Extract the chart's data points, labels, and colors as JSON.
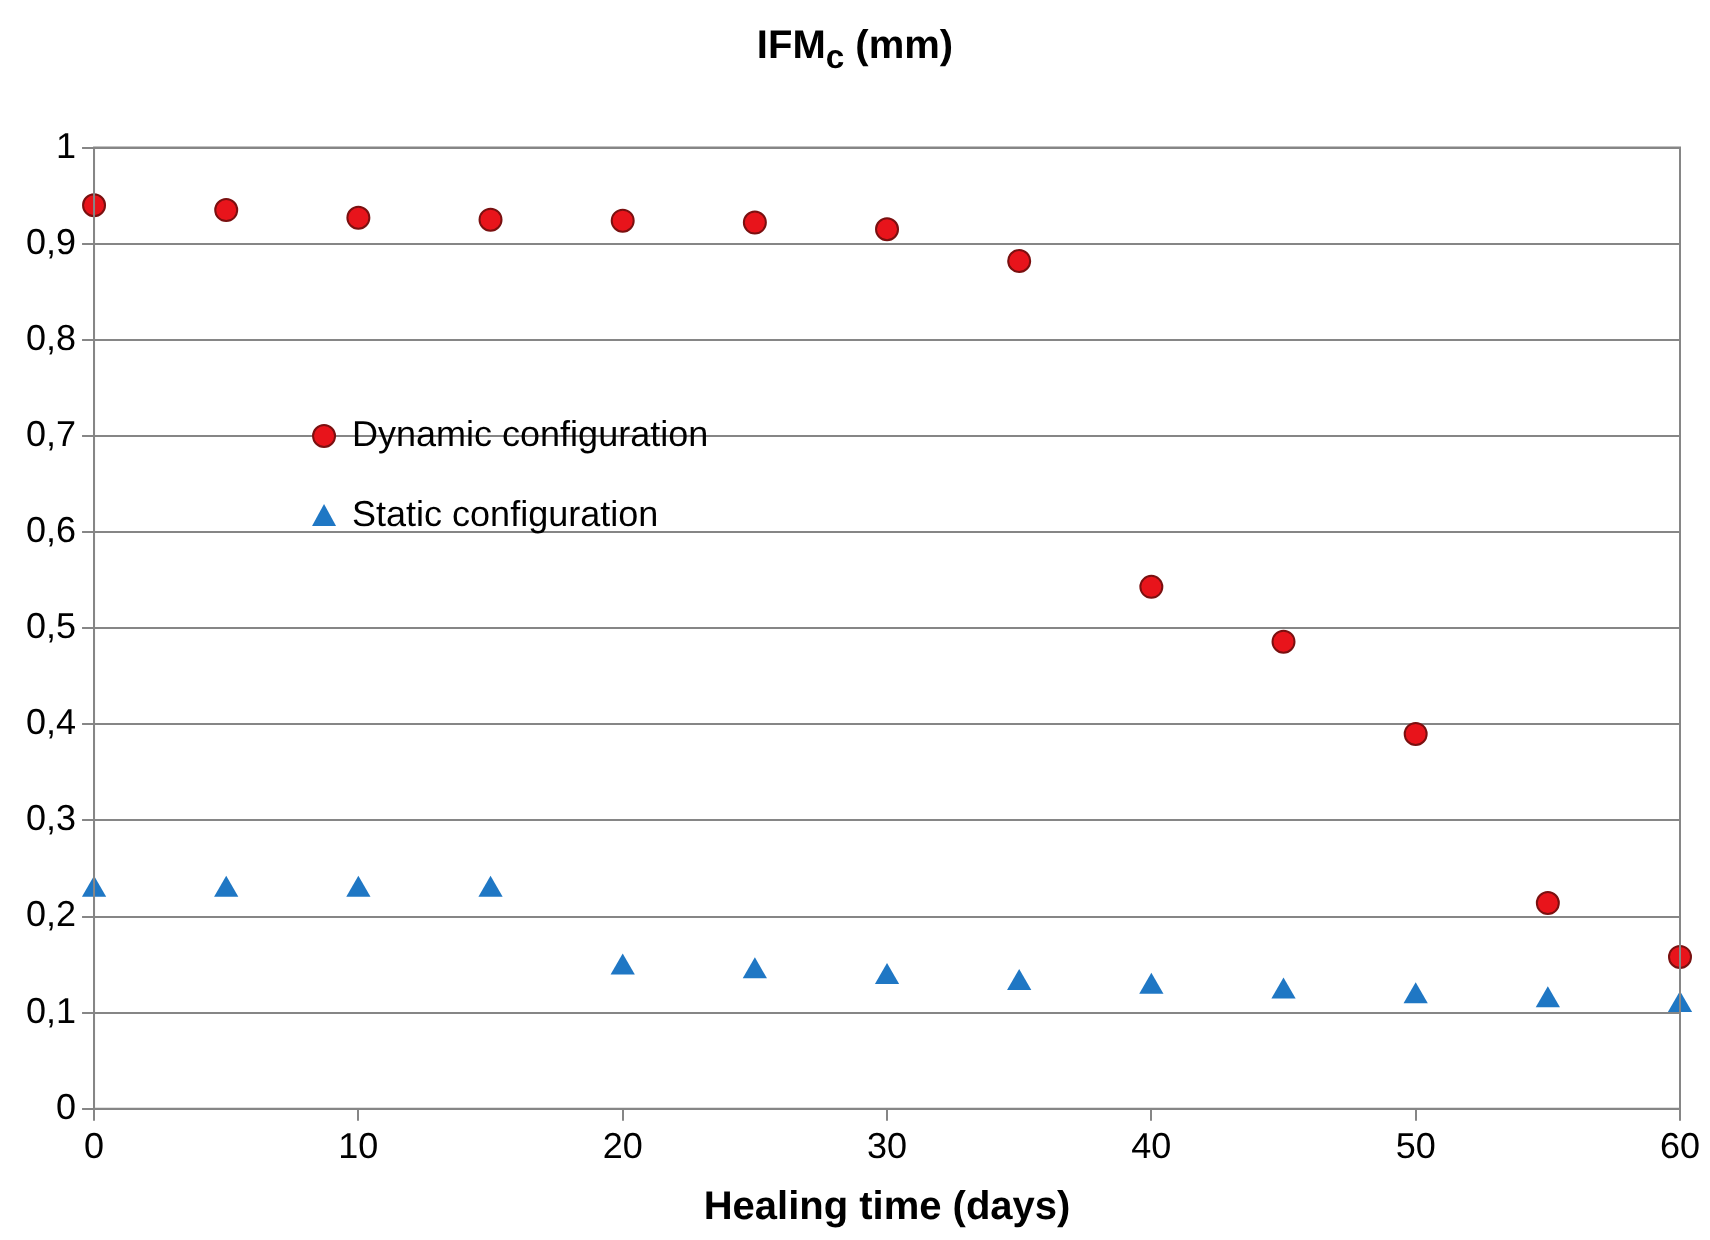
{
  "chart_data": {
    "type": "scatter",
    "title": "IFM$_{c}$ (mm)",
    "xlabel": "Healing time (days)",
    "x": [
      0,
      5,
      10,
      15,
      20,
      25,
      30,
      35,
      40,
      45,
      50,
      55,
      60
    ],
    "series": [
      {
        "name": "Dynamic configuration",
        "color": "#e8141b",
        "marker": "circle",
        "values": [
          0.94,
          0.935,
          0.927,
          0.925,
          0.924,
          0.922,
          0.915,
          0.882,
          0.543,
          0.486,
          0.39,
          0.214,
          0.158
        ]
      },
      {
        "name": "Static configuration",
        "color": "#1f77c4",
        "marker": "triangle",
        "values": [
          0.228,
          0.228,
          0.228,
          0.228,
          0.147,
          0.143,
          0.137,
          0.131,
          0.127,
          0.122,
          0.117,
          0.113,
          0.108
        ]
      }
    ],
    "xlim": [
      0,
      60
    ],
    "xticks": [
      0,
      10,
      20,
      30,
      40,
      50,
      60
    ],
    "ylim": [
      0,
      1
    ],
    "yticks": [
      0,
      {
        "value": 0.1,
        "label": "0,1"
      },
      {
        "value": 0.2,
        "label": "0,2"
      },
      {
        "value": 0.3,
        "label": "0,3"
      },
      {
        "value": 0.4,
        "label": "0,4"
      },
      {
        "value": 0.5,
        "label": "0,5"
      },
      {
        "value": 0.6,
        "label": "0,6"
      },
      {
        "value": 0.7,
        "label": "0,7"
      },
      {
        "value": 0.8,
        "label": "0,8"
      },
      {
        "value": 0.9,
        "label": "0,9"
      },
      1
    ],
    "grid": "y",
    "legend": "left"
  }
}
